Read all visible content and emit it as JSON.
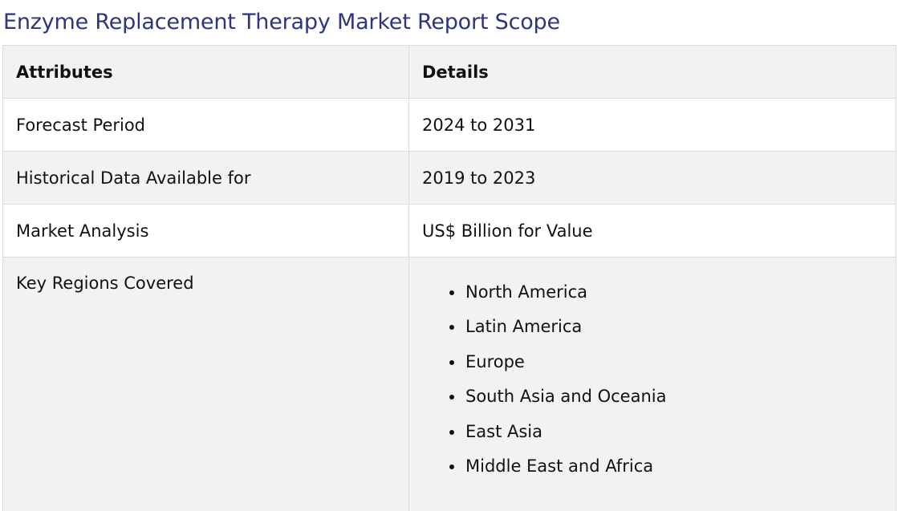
{
  "title": "Enzyme Replacement Therapy Market Report Scope",
  "table": {
    "headers": [
      "Attributes",
      "Details"
    ],
    "rows": [
      {
        "attribute": "Forecast Period",
        "detail": "2024 to 2031"
      },
      {
        "attribute": "Historical Data Available for",
        "detail": "2019 to 2023"
      },
      {
        "attribute": "Market Analysis",
        "detail": "US$ Billion for Value"
      },
      {
        "attribute": "Key Regions Covered",
        "detail_list": [
          "North America",
          "Latin America",
          "Europe",
          "South Asia and Oceania",
          "East Asia",
          "Middle East and Africa"
        ]
      }
    ]
  },
  "colors": {
    "title": "#2d3580",
    "row_alt": "#f2f2f2",
    "border": "#dddddd"
  }
}
